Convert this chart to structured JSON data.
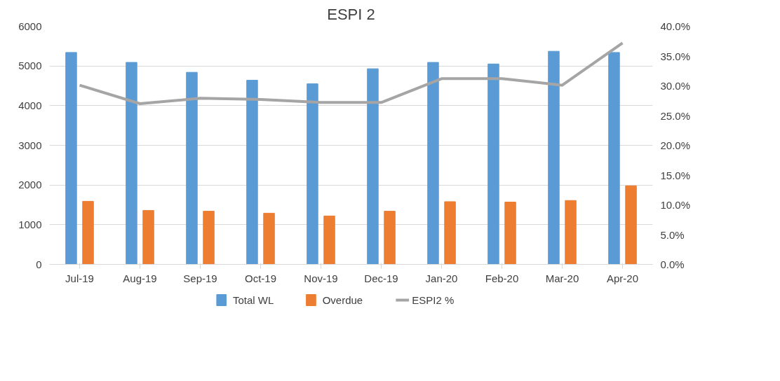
{
  "chart_data": {
    "type": "bar",
    "title": "ESPI 2",
    "categories": [
      "Jul-19",
      "Aug-19",
      "Sep-19",
      "Oct-19",
      "Nov-19",
      "Dec-19",
      "Jan-20",
      "Feb-20",
      "Mar-20",
      "Apr-20"
    ],
    "series": [
      {
        "name": "Total WL",
        "color": "#5b9bd5",
        "values": [
          5340,
          5090,
          4840,
          4640,
          4550,
          4930,
          5090,
          5050,
          5370,
          5340
        ]
      },
      {
        "name": "Overdue",
        "color": "#ed7d31",
        "values": [
          1590,
          1360,
          1340,
          1290,
          1220,
          1340,
          1580,
          1570,
          1610,
          1980
        ]
      },
      {
        "name": "ESPI2 %",
        "type": "line",
        "axis": "y2",
        "color": "#a5a5a5",
        "values": [
          30.1,
          27.0,
          27.9,
          27.7,
          27.2,
          27.2,
          31.2,
          31.2,
          30.1,
          37.2
        ]
      }
    ],
    "ylim": [
      0,
      6000
    ],
    "yticks": [
      0,
      1000,
      2000,
      3000,
      4000,
      5000,
      6000
    ],
    "y2lim": [
      0,
      40
    ],
    "y2ticks": [
      {
        "value": 0,
        "label": "0.0%"
      },
      {
        "value": 5,
        "label": "5.0%"
      },
      {
        "value": 10,
        "label": "10.0%"
      },
      {
        "value": 15,
        "label": "15.0%"
      },
      {
        "value": 20,
        "label": "20.0%"
      },
      {
        "value": 25,
        "label": "25.0%"
      },
      {
        "value": 30,
        "label": "30.0%"
      },
      {
        "value": 35,
        "label": "35.0%"
      },
      {
        "value": 40,
        "label": "40.0%"
      }
    ],
    "grid": "y",
    "legend": "bottom",
    "marker": "none",
    "line_style": "solid"
  }
}
